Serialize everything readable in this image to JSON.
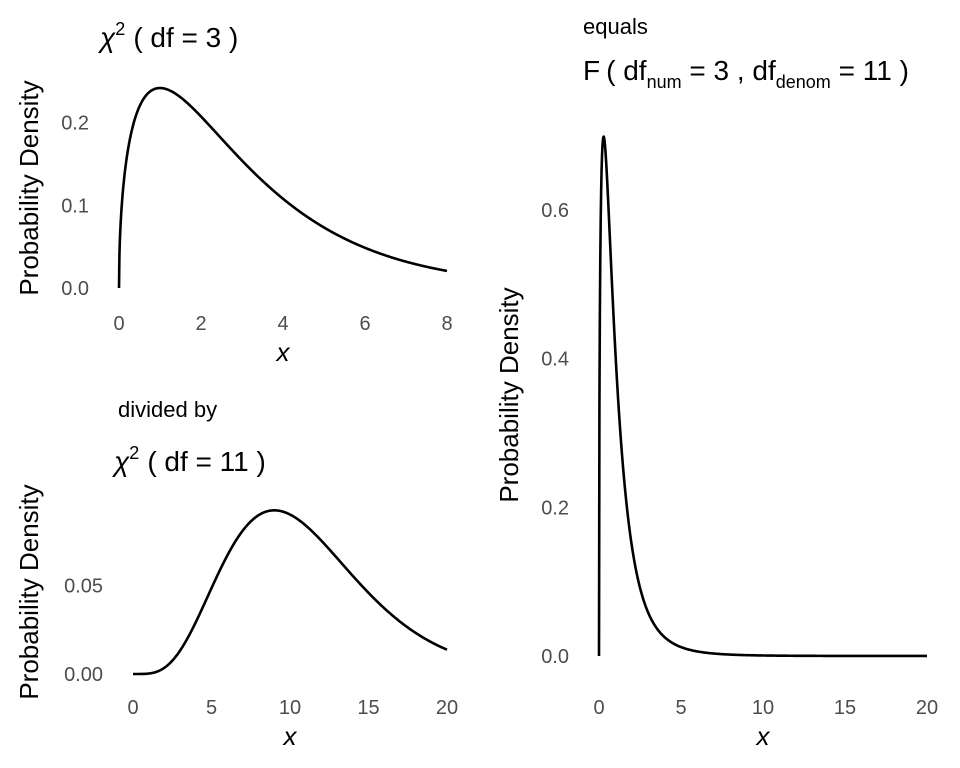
{
  "chart_data": [
    {
      "id": "chisq3",
      "type": "line",
      "title_prefix": "",
      "title": {
        "symbol": "χ",
        "sup": "2",
        "text": "( df = 3 )"
      },
      "xlabel": "x",
      "ylabel": "Probability Density",
      "xlim": [
        0,
        8
      ],
      "ylim": [
        0,
        0.242
      ],
      "xticks": [
        0,
        2,
        4,
        6,
        8
      ],
      "yticks": [
        0.0,
        0.1,
        0.2
      ],
      "ytick_labels": [
        "0.0",
        "0.1",
        "0.2"
      ],
      "distribution": {
        "family": "chi-squared",
        "df": 3
      },
      "series": [
        {
          "x": [
            0,
            0.05,
            0.25,
            0.5,
            0.75,
            1,
            1.5,
            2,
            2.5,
            3,
            4,
            5,
            6,
            7,
            8
          ],
          "y": [
            0,
            0.087,
            0.177,
            0.22,
            0.237,
            0.242,
            0.231,
            0.208,
            0.18,
            0.154,
            0.108,
            0.073,
            0.048,
            0.032,
            0.021
          ]
        }
      ]
    },
    {
      "id": "chisq11",
      "type": "line",
      "title_prefix": "divided by",
      "title": {
        "symbol": "χ",
        "sup": "2",
        "text": "( df = 11 )"
      },
      "xlabel": "x",
      "ylabel": "Probability Density",
      "xlim": [
        0,
        20
      ],
      "ylim": [
        0,
        0.0925
      ],
      "xticks": [
        0,
        5,
        10,
        15,
        20
      ],
      "yticks": [
        0.0,
        0.05
      ],
      "ytick_labels": [
        "0.00",
        "0.05"
      ],
      "distribution": {
        "family": "chi-squared",
        "df": 11
      },
      "series": [
        {
          "x": [
            0,
            2,
            4,
            6,
            8,
            9,
            10,
            12,
            14,
            16,
            18,
            20
          ],
          "y": [
            0,
            0.004,
            0.024,
            0.058,
            0.085,
            0.0904,
            0.088,
            0.072,
            0.052,
            0.034,
            0.021,
            0.013
          ]
        }
      ]
    },
    {
      "id": "f3_11",
      "type": "line",
      "title_prefix": "equals",
      "title": {
        "symbol": "F",
        "text": "( df",
        "sub1": "num",
        "mid": " = 3 ,  df",
        "sub2": "denom",
        "end": " = 11 )"
      },
      "xlabel": "x",
      "ylabel": "Probability Density",
      "xlim": [
        0,
        20
      ],
      "ylim": [
        0,
        0.701
      ],
      "xticks": [
        0,
        5,
        10,
        15,
        20
      ],
      "yticks": [
        0.0,
        0.2,
        0.4,
        0.6
      ],
      "ytick_labels": [
        "0.0",
        "0.2",
        "0.4",
        "0.6"
      ],
      "distribution": {
        "family": "F",
        "df1": 3,
        "df2": 11
      },
      "series": [
        {
          "x": [
            0,
            0.1,
            0.3,
            0.5,
            1,
            2,
            3,
            5,
            10,
            15,
            20
          ],
          "y": [
            0,
            0.55,
            0.7,
            0.66,
            0.44,
            0.17,
            0.07,
            0.015,
            0.001,
            0.0002,
            0.0001
          ]
        }
      ]
    }
  ]
}
